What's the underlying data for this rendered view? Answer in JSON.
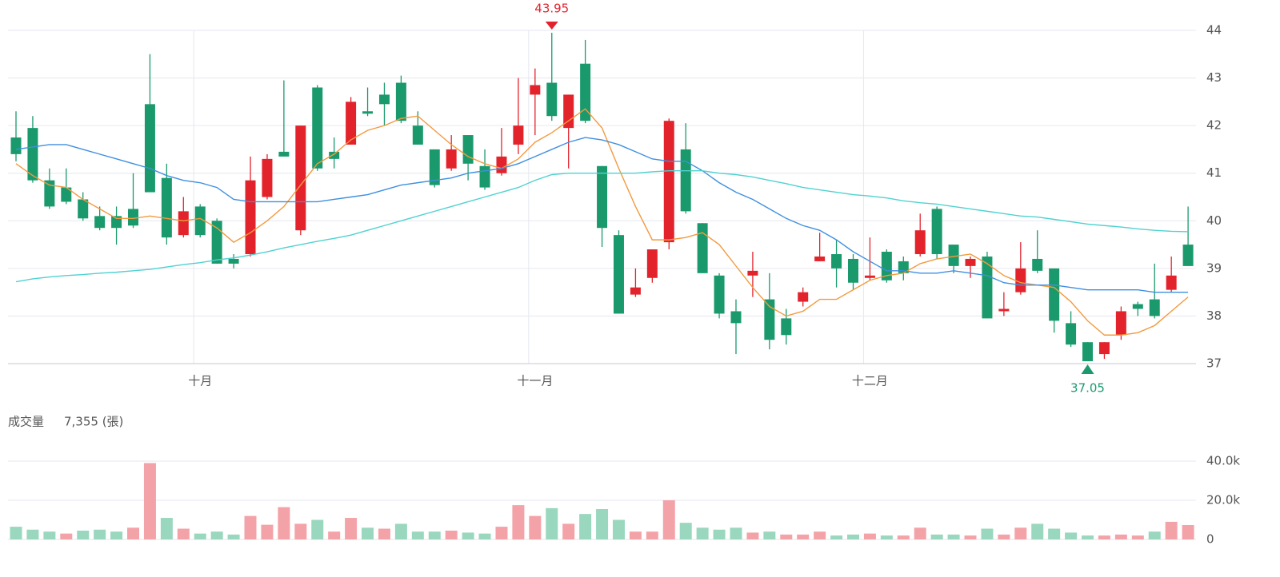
{
  "chart_data": [
    {
      "type": "candlestick",
      "categories": [
        null,
        null,
        null,
        null,
        null,
        null,
        null,
        null,
        null,
        null,
        null,
        "十月",
        null,
        null,
        null,
        null,
        null,
        null,
        null,
        null,
        null,
        null,
        null,
        null,
        null,
        null,
        null,
        null,
        null,
        null,
        null,
        "十一月",
        null,
        null,
        null,
        null,
        null,
        null,
        null,
        null,
        null,
        null,
        null,
        null,
        null,
        null,
        null,
        null,
        null,
        null,
        null,
        "十二月",
        null,
        null,
        null,
        null,
        null,
        null,
        null,
        null,
        null,
        null,
        null,
        null,
        null,
        null,
        null,
        null,
        null,
        null,
        null
      ],
      "open": [
        41.75,
        41.95,
        40.85,
        40.7,
        40.45,
        40.1,
        40.1,
        40.25,
        42.45,
        40.9,
        39.7,
        40.3,
        40.0,
        39.2,
        39.3,
        40.5,
        41.45,
        39.8,
        42.8,
        41.45,
        41.6,
        42.3,
        42.65,
        42.9,
        42.0,
        41.5,
        41.1,
        41.8,
        41.15,
        41.0,
        41.6,
        42.65,
        42.9,
        41.95,
        43.3,
        41.15,
        39.7,
        38.45,
        38.8,
        39.55,
        41.5,
        39.95,
        38.85,
        38.1,
        38.85,
        38.35,
        37.95,
        38.3,
        39.15,
        39.3,
        39.2,
        38.8,
        39.35,
        39.15,
        39.3,
        40.25,
        39.5,
        39.05,
        39.25,
        38.1,
        38.5,
        39.2,
        39.0,
        37.85,
        37.45,
        37.2,
        37.6,
        38.25,
        38.35,
        38.55,
        39.5
      ],
      "high": [
        42.3,
        42.2,
        41.1,
        41.1,
        40.6,
        40.3,
        40.3,
        41.0,
        43.5,
        41.2,
        40.5,
        40.35,
        40.05,
        39.3,
        41.35,
        41.4,
        42.95,
        42.0,
        42.85,
        41.75,
        42.6,
        42.8,
        42.9,
        43.05,
        42.3,
        41.5,
        41.8,
        41.8,
        41.5,
        41.95,
        43.0,
        43.2,
        43.95,
        42.65,
        43.8,
        41.15,
        39.8,
        39.0,
        39.4,
        42.15,
        42.05,
        39.95,
        38.9,
        38.35,
        39.35,
        38.9,
        38.15,
        38.6,
        39.75,
        39.6,
        39.3,
        39.65,
        39.4,
        39.25,
        40.15,
        40.3,
        39.5,
        39.25,
        39.35,
        38.5,
        39.55,
        39.8,
        39.0,
        38.1,
        37.45,
        37.45,
        38.2,
        38.3,
        39.1,
        39.25,
        40.3
      ],
      "low": [
        41.25,
        40.8,
        40.25,
        40.35,
        40.0,
        39.8,
        39.5,
        39.85,
        40.6,
        39.5,
        39.65,
        39.65,
        39.1,
        39.0,
        39.25,
        40.45,
        41.35,
        39.7,
        41.05,
        41.1,
        41.6,
        42.2,
        42.0,
        42.05,
        41.6,
        40.7,
        41.05,
        40.85,
        40.65,
        40.95,
        41.4,
        41.8,
        42.1,
        41.1,
        42.05,
        39.45,
        38.05,
        38.4,
        38.7,
        39.4,
        40.15,
        38.9,
        37.95,
        37.2,
        38.4,
        37.3,
        37.4,
        38.2,
        39.15,
        38.6,
        38.55,
        38.75,
        38.7,
        38.75,
        39.25,
        39.2,
        38.9,
        38.8,
        37.95,
        38.0,
        38.45,
        38.9,
        37.65,
        37.35,
        37.05,
        37.1,
        37.5,
        38.0,
        37.95,
        38.5,
        39.05
      ],
      "close": [
        41.4,
        40.85,
        40.3,
        40.4,
        40.05,
        39.85,
        39.85,
        39.9,
        40.6,
        39.65,
        40.2,
        39.7,
        39.1,
        39.1,
        40.85,
        41.3,
        41.35,
        42.0,
        41.1,
        41.3,
        42.5,
        42.25,
        42.45,
        42.1,
        41.6,
        40.75,
        41.5,
        41.2,
        40.7,
        41.35,
        42.0,
        42.85,
        42.2,
        42.65,
        42.1,
        39.85,
        38.05,
        38.6,
        39.4,
        42.1,
        40.2,
        38.9,
        38.05,
        37.85,
        38.95,
        37.5,
        37.6,
        38.5,
        39.25,
        39.0,
        38.7,
        38.85,
        38.75,
        38.9,
        39.8,
        39.3,
        39.05,
        39.2,
        37.95,
        38.15,
        39.0,
        38.95,
        37.9,
        37.4,
        37.05,
        37.45,
        38.1,
        38.15,
        38.0,
        38.85,
        39.05
      ],
      "up_color": "#e3232c",
      "down_color": "#1a9a6c",
      "series": [
        {
          "color": "#f39a3e",
          "values": [
            41.2,
            40.95,
            40.75,
            40.7,
            40.45,
            40.25,
            40.05,
            40.05,
            40.1,
            40.05,
            40.0,
            40.05,
            39.85,
            39.55,
            39.75,
            40.0,
            40.3,
            40.75,
            41.2,
            41.4,
            41.7,
            41.9,
            42.0,
            42.15,
            42.2,
            41.9,
            41.6,
            41.35,
            41.2,
            41.1,
            41.3,
            41.65,
            41.85,
            42.1,
            42.35,
            41.95,
            41.1,
            40.3,
            39.6,
            39.6,
            39.65,
            39.75,
            39.5,
            39.05,
            38.6,
            38.2,
            38.0,
            38.1,
            38.35,
            38.35,
            38.55,
            38.75,
            38.85,
            38.9,
            39.1,
            39.2,
            39.25,
            39.3,
            39.1,
            38.85,
            38.7,
            38.65,
            38.6,
            38.3,
            37.9,
            37.6,
            37.6,
            37.65,
            37.8,
            38.1,
            38.4
          ]
        },
        {
          "color": "#3f8fe0",
          "values": [
            41.5,
            41.55,
            41.6,
            41.6,
            41.5,
            41.4,
            41.3,
            41.2,
            41.1,
            40.95,
            40.85,
            40.8,
            40.7,
            40.45,
            40.4,
            40.4,
            40.4,
            40.4,
            40.4,
            40.45,
            40.5,
            40.55,
            40.65,
            40.75,
            40.8,
            40.85,
            40.9,
            41.0,
            41.05,
            41.1,
            41.2,
            41.35,
            41.5,
            41.65,
            41.75,
            41.7,
            41.6,
            41.45,
            41.3,
            41.25,
            41.25,
            41.05,
            40.8,
            40.6,
            40.45,
            40.25,
            40.05,
            39.9,
            39.8,
            39.6,
            39.35,
            39.15,
            38.95,
            38.95,
            38.9,
            38.9,
            38.95,
            38.9,
            38.85,
            38.7,
            38.65,
            38.65,
            38.65,
            38.6,
            38.55,
            38.55,
            38.55,
            38.55,
            38.5,
            38.5,
            38.5
          ]
        },
        {
          "color": "#4fd2d0",
          "values": [
            38.72,
            38.78,
            38.82,
            38.85,
            38.87,
            38.9,
            38.92,
            38.95,
            38.98,
            39.03,
            39.08,
            39.12,
            39.18,
            39.22,
            39.28,
            39.35,
            39.43,
            39.5,
            39.57,
            39.63,
            39.7,
            39.8,
            39.9,
            40.0,
            40.1,
            40.2,
            40.3,
            40.4,
            40.5,
            40.6,
            40.7,
            40.85,
            40.97,
            41.0,
            41.0,
            41.0,
            41.0,
            41.0,
            41.03,
            41.05,
            41.05,
            41.05,
            41.0,
            40.97,
            40.92,
            40.85,
            40.78,
            40.7,
            40.65,
            40.6,
            40.55,
            40.52,
            40.48,
            40.42,
            40.38,
            40.35,
            40.3,
            40.25,
            40.2,
            40.15,
            40.1,
            40.08,
            40.03,
            39.98,
            39.93,
            39.9,
            39.87,
            39.83,
            39.8,
            39.78,
            39.77
          ]
        }
      ],
      "ylim": [
        37,
        44
      ],
      "yticks": [
        37,
        38,
        39,
        40,
        41,
        42,
        43,
        44
      ],
      "grid": true
    },
    {
      "type": "bar",
      "title": "成交量",
      "subtitle": "7,355 (張)",
      "values": [
        6500,
        5000,
        4000,
        3000,
        4500,
        5000,
        4000,
        6000,
        39000,
        11000,
        5500,
        3000,
        4000,
        2500,
        12000,
        7500,
        16500,
        8000,
        10000,
        4000,
        11000,
        6000,
        5500,
        8000,
        4000,
        4000,
        4500,
        3500,
        3000,
        6500,
        17500,
        12000,
        16000,
        8000,
        13000,
        15500,
        10000,
        4000,
        4000,
        20000,
        8500,
        6000,
        5000,
        6000,
        3500,
        4000,
        2500,
        2500,
        4000,
        2000,
        2500,
        3000,
        2000,
        2000,
        6000,
        2500,
        2500,
        2000,
        5500,
        2500,
        6000,
        8000,
        5500,
        3500,
        2000,
        2000,
        2500,
        2000,
        4000,
        9000,
        7355
      ],
      "up_color": "#f3a3a8",
      "down_color": "#9ad7bf",
      "ylim": [
        0,
        40000
      ],
      "yticks": [
        0,
        {
          "value": 20000,
          "label": "20.0k"
        },
        {
          "value": 40000,
          "label": "40.0k"
        }
      ],
      "grid": true
    }
  ]
}
